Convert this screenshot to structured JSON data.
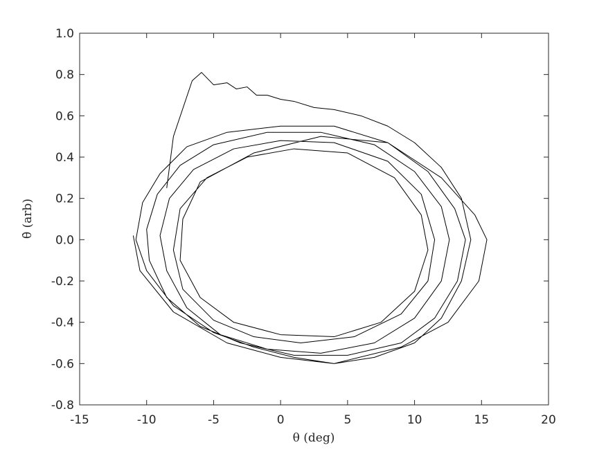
{
  "chart_data": {
    "type": "line",
    "xlabel": "θ (deg)",
    "ylabel": "θ̇ (arb)",
    "xlim": [
      -15,
      20
    ],
    "xticks": [
      -15,
      -10,
      -5,
      0,
      5,
      10,
      15,
      20
    ],
    "ylim": [
      -0.8,
      1.0
    ],
    "yticks": [
      -0.8,
      -0.6,
      -0.4,
      -0.2,
      {
        "value": 0,
        "label": "0.0"
      },
      0.2,
      0.4,
      0.6,
      0.8,
      {
        "value": 1,
        "label": "1.0"
      }
    ],
    "grid": false,
    "x": [
      -8.5,
      -8,
      -6.6,
      -5.9,
      -5,
      -4,
      -3.3,
      -2.5,
      -1.8,
      -1,
      0,
      1,
      2.5,
      4,
      6,
      8,
      10,
      12,
      13.5,
      14.2,
      13.5,
      12,
      10,
      7,
      4,
      1,
      -2,
      -5,
      -8,
      -10,
      -10.8,
      -10.3,
      -9,
      -7,
      -4,
      0,
      4,
      8,
      11,
      13,
      13.8,
      13.2,
      11.5,
      9,
      5,
      1,
      -3,
      -6,
      -8.5,
      -9.8,
      -10,
      -9.2,
      -7.5,
      -5,
      -1,
      3,
      7,
      10,
      12,
      12.6,
      12,
      10,
      7,
      3,
      -1,
      -4.5,
      -7,
      -8.5,
      -9,
      -8.3,
      -6.5,
      -3.5,
      0,
      4,
      8,
      10.5,
      11.5,
      11,
      9,
      5.5,
      1.5,
      -2,
      -5,
      -7.3,
      -8,
      -7.5,
      -5.5,
      -2.5,
      1,
      5,
      8.5,
      10.5,
      11,
      10,
      7.5,
      4,
      0,
      -3.5,
      -6,
      -7.5,
      -7.3,
      -6,
      -2,
      3,
      8,
      12,
      14.5,
      15.4,
      14.8,
      12.5,
      9,
      4,
      0,
      -4,
      -8,
      -10.5,
      -11
    ],
    "series": [
      {
        "color": "#000000",
        "values": [
          0.25,
          0.5,
          0.77,
          0.81,
          0.75,
          0.76,
          0.73,
          0.74,
          0.7,
          0.7,
          0.68,
          0.67,
          0.64,
          0.63,
          0.6,
          0.55,
          0.47,
          0.35,
          0.2,
          0,
          -0.2,
          -0.38,
          -0.5,
          -0.57,
          -0.6,
          -0.57,
          -0.52,
          -0.45,
          -0.32,
          -0.15,
          0,
          0.18,
          0.32,
          0.45,
          0.52,
          0.55,
          0.55,
          0.47,
          0.33,
          0.15,
          0,
          -0.2,
          -0.38,
          -0.5,
          -0.56,
          -0.56,
          -0.5,
          -0.42,
          -0.28,
          -0.1,
          0.05,
          0.22,
          0.36,
          0.46,
          0.52,
          0.52,
          0.46,
          0.33,
          0.16,
          0,
          -0.2,
          -0.38,
          -0.5,
          -0.55,
          -0.53,
          -0.46,
          -0.33,
          -0.15,
          0.02,
          0.2,
          0.34,
          0.44,
          0.48,
          0.47,
          0.38,
          0.22,
          0,
          -0.2,
          -0.36,
          -0.47,
          -0.5,
          -0.47,
          -0.39,
          -0.24,
          -0.05,
          0.15,
          0.3,
          0.4,
          0.44,
          0.42,
          0.3,
          0.12,
          -0.05,
          -0.25,
          -0.4,
          -0.47,
          -0.46,
          -0.4,
          -0.28,
          -0.1,
          0.1,
          0.28,
          0.42,
          0.5,
          0.47,
          0.3,
          0.12,
          0,
          -0.2,
          -0.4,
          -0.52,
          -0.6,
          -0.57,
          -0.5,
          -0.35,
          -0.15,
          0.02
        ]
      }
    ]
  }
}
